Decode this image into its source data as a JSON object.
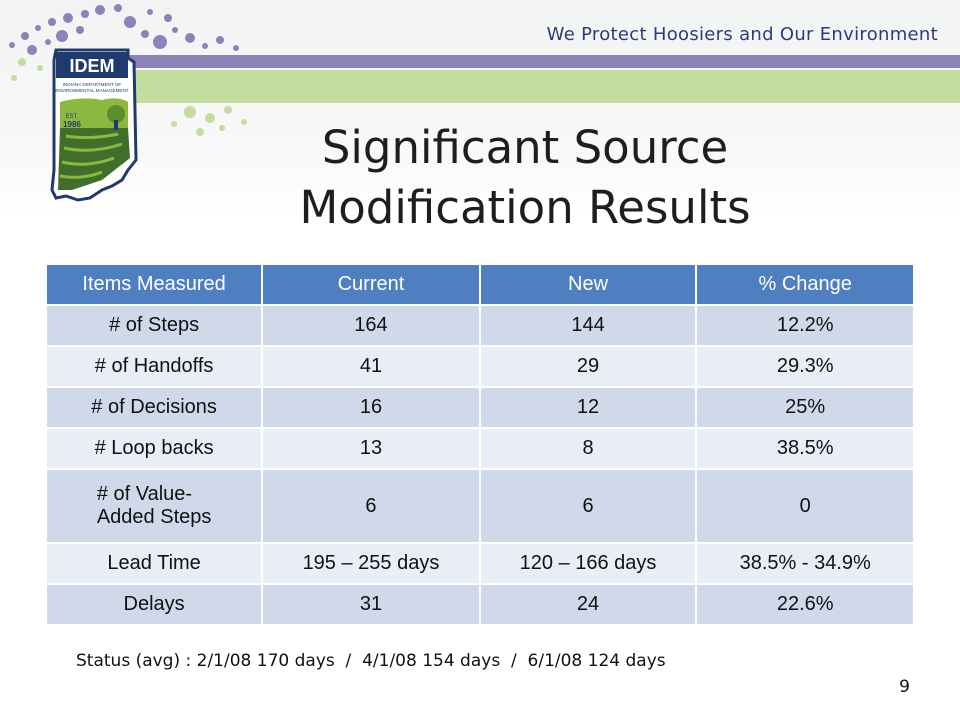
{
  "header": {
    "tagline": "We Protect Hoosiers and Our Environment"
  },
  "logo": {
    "name": "IDEM",
    "subtitle_line1": "INDIANA DEPARTMENT OF",
    "subtitle_line2": "ENVIRONMENTAL MANAGEMENT",
    "est_label": "EST.",
    "est_year": "1986",
    "colors": {
      "navy": "#1f3a6e",
      "green": "#8cb83f",
      "dark_green": "#3f6f2a"
    }
  },
  "title": {
    "line1": "Significant Source",
    "line2": "Modification Results"
  },
  "table": {
    "headers": [
      "Items Measured",
      "Current",
      "New",
      "% Change"
    ],
    "rows": [
      {
        "item": "# of Steps",
        "current": "164",
        "new": "144",
        "change": "12.2%"
      },
      {
        "item": "# of Handoffs",
        "current": "41",
        "new": "29",
        "change": "29.3%"
      },
      {
        "item": "# of Decisions",
        "current": "16",
        "new": "12",
        "change": "25%"
      },
      {
        "item": "# Loop backs",
        "current": "13",
        "new": "8",
        "change": "38.5%"
      },
      {
        "item_line1": "# of Value-",
        "item_line2": "Added Steps",
        "current": "6",
        "new": "6",
        "change": "0"
      },
      {
        "item": "Lead Time",
        "current": "195 – 255 days",
        "new": "120 – 166 days",
        "change": "38.5% - 34.9%"
      },
      {
        "item": "Delays",
        "current": "31",
        "new": "24",
        "change": "22.6%"
      }
    ],
    "colors": {
      "header_bg": "#4f7fc0",
      "row_dark": "#d0d9ea",
      "row_light": "#e9edf5"
    }
  },
  "status": {
    "text": "Status (avg) : 2/1/08 170 days  /  4/1/08 154 days  /  6/1/08 124 days"
  },
  "page_number": "9"
}
